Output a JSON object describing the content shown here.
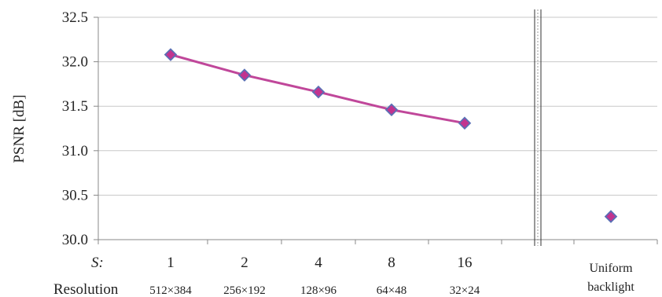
{
  "chart_data": {
    "type": "line",
    "ylabel": "PSNR [dB]",
    "ylim": [
      30.0,
      32.5
    ],
    "yticks": [
      "30.0",
      "30.5",
      "31.0",
      "31.5",
      "32.0",
      "32.5"
    ],
    "grid": true,
    "row_labels": {
      "s": "S:",
      "resolution": "Resolution"
    },
    "categories": [
      "1",
      "2",
      "4",
      "8",
      "16"
    ],
    "resolutions": [
      "512×384",
      "256×192",
      "128×96",
      "64×48",
      "32×24"
    ],
    "values": [
      32.08,
      31.85,
      31.66,
      31.46,
      31.31
    ],
    "separate_point": {
      "label_line1": "Uniform",
      "label_line2": "backlight",
      "value": 30.26
    },
    "colors": {
      "line": "#c0479a",
      "marker_fill": "#c2338f",
      "marker_stroke": "#5b6fb5",
      "grid": "#c8c8c8",
      "axis": "#888888"
    }
  }
}
